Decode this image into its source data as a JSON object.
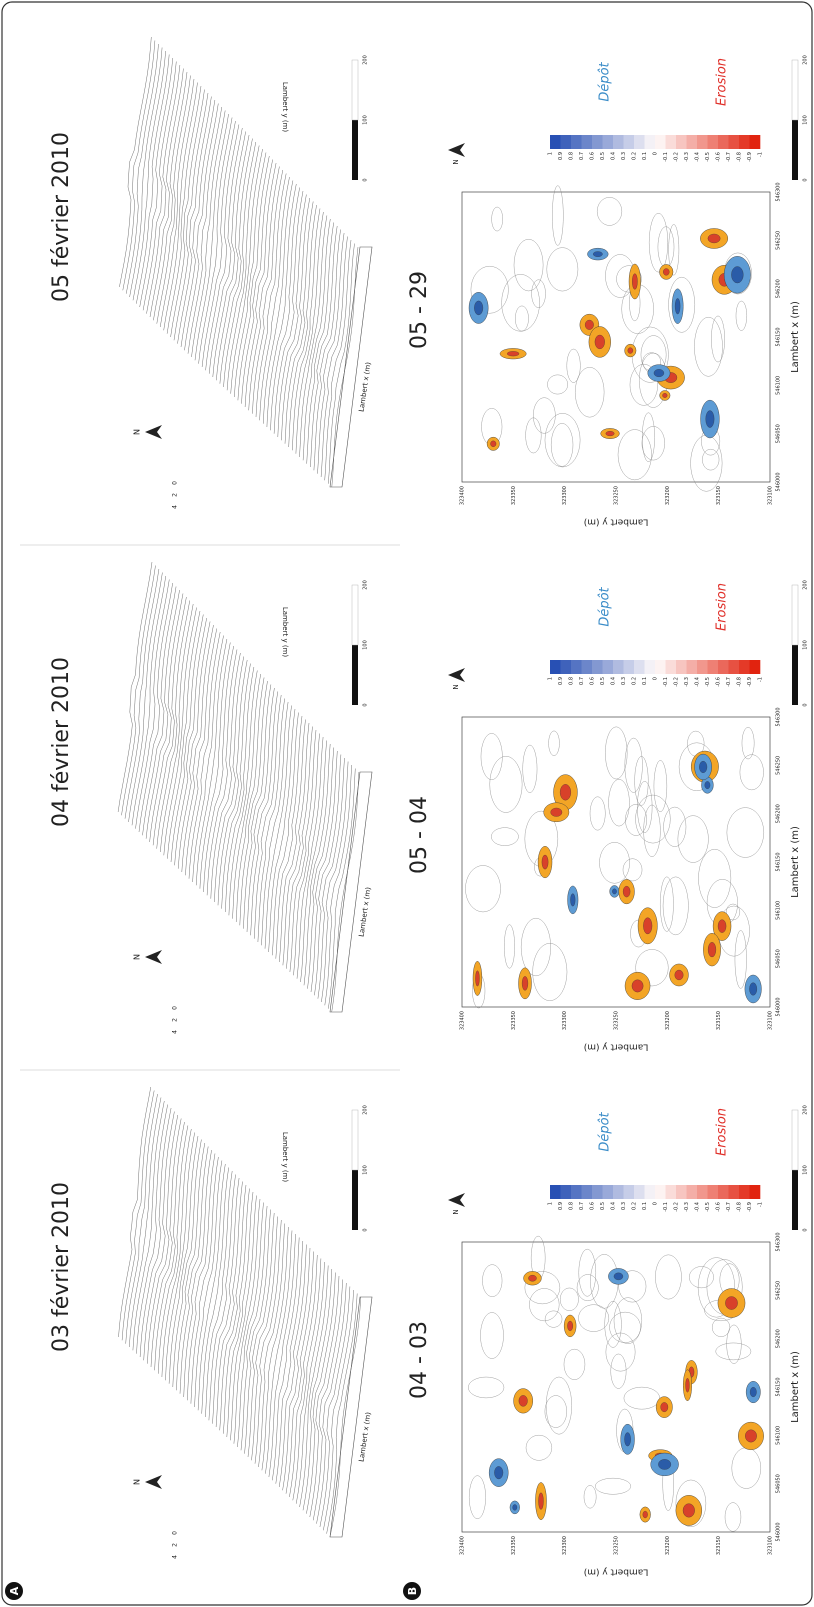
{
  "panel_labels": [
    "A",
    "B"
  ],
  "columns": [
    {
      "date": "03 février 2010",
      "difference": "04 - 03"
    },
    {
      "date": "04 février 2010",
      "difference": "05 - 04"
    },
    {
      "date": "05 février 2010",
      "difference": "05 - 29"
    }
  ],
  "surface_axes": {
    "x_label": "Lambert x (m)",
    "y_label": "Lambert y (m)",
    "z_ticks": [
      "4",
      "2",
      "0"
    ]
  },
  "north": "N",
  "scale_labels": [
    "0",
    "100",
    "200"
  ],
  "map_axes": {
    "x_label": "Lambert x (m)",
    "y_label": "Lambert y (m)",
    "xticks": [
      "546000",
      "546050",
      "546100",
      "546150",
      "546200",
      "546250",
      "546300"
    ],
    "yticks": [
      "323400",
      "323350",
      "323300",
      "323250",
      "323200",
      "323150",
      "323100"
    ]
  },
  "colorbar": {
    "labels": [
      "1",
      "0.9",
      "0.8",
      "0.7",
      "0.6",
      "0.5",
      "0.4",
      "0.3",
      "0.2",
      "0.1",
      "0",
      "-0.1",
      "-0.2",
      "-0.3",
      "-0.4",
      "-0.5",
      "-0.6",
      "-0.7",
      "-0.8",
      "-0.9",
      "-1"
    ],
    "deposit": "Dépôt",
    "erosion": "Erosion"
  }
}
